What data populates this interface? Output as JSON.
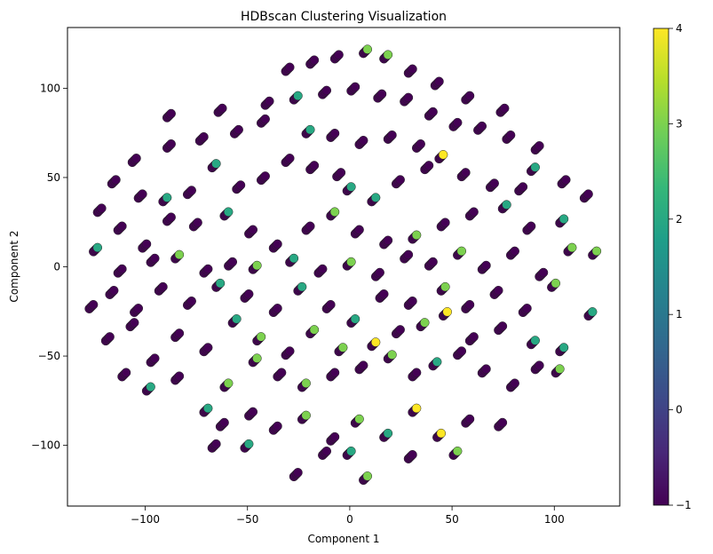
{
  "chart_data": {
    "type": "scatter",
    "title": "HDBscan Clustering Visualization",
    "xlabel": "Component 1",
    "ylabel": "Component 2",
    "xlim": [
      -138,
      132
    ],
    "ylim": [
      -134,
      134
    ],
    "xticks": [
      -100,
      -50,
      0,
      50,
      100
    ],
    "xtick_labels": [
      "−100",
      "−50",
      "0",
      "50",
      "100"
    ],
    "yticks": [
      -100,
      -50,
      0,
      50,
      100
    ],
    "ytick_labels": [
      "−100",
      "−50",
      "0",
      "50",
      "100"
    ],
    "grid": false,
    "colormap": "viridis",
    "colorbar": {
      "min": -1,
      "max": 4,
      "ticks": [
        -1,
        0,
        1,
        2,
        3,
        4
      ],
      "tick_labels": [
        "−1",
        "0",
        "1",
        "2",
        "3",
        "4"
      ]
    },
    "colormap_stops": [
      "#440154",
      "#482878",
      "#3e4989",
      "#31688e",
      "#26828e",
      "#1f9e89",
      "#35b779",
      "#6ece58",
      "#b5de2b",
      "#fde725"
    ],
    "point_color_default": "#440154",
    "points": [
      {
        "x": -88,
        "y": 85,
        "label": -1
      },
      {
        "x": -63,
        "y": 88,
        "label": -1
      },
      {
        "x": -40,
        "y": 92,
        "label": -1
      },
      {
        "x": -30,
        "y": 111,
        "label": -1
      },
      {
        "x": -18,
        "y": 115,
        "label": -1
      },
      {
        "x": -6,
        "y": 118,
        "label": -1
      },
      {
        "x": 8,
        "y": 121,
        "label": 3
      },
      {
        "x": 18,
        "y": 118,
        "label": 3
      },
      {
        "x": 30,
        "y": 110,
        "label": -1
      },
      {
        "x": 43,
        "y": 103,
        "label": -1
      },
      {
        "x": 58,
        "y": 95,
        "label": -1
      },
      {
        "x": 75,
        "y": 88,
        "label": -1
      },
      {
        "x": -105,
        "y": 60,
        "label": -1
      },
      {
        "x": -88,
        "y": 68,
        "label": -1
      },
      {
        "x": -72,
        "y": 72,
        "label": -1
      },
      {
        "x": -55,
        "y": 76,
        "label": -1
      },
      {
        "x": -42,
        "y": 82,
        "label": -1
      },
      {
        "x": -26,
        "y": 95,
        "label": 2
      },
      {
        "x": -12,
        "y": 98,
        "label": -1
      },
      {
        "x": 2,
        "y": 100,
        "label": -1
      },
      {
        "x": 15,
        "y": 96,
        "label": -1
      },
      {
        "x": 28,
        "y": 94,
        "label": -1
      },
      {
        "x": 40,
        "y": 86,
        "label": -1
      },
      {
        "x": 52,
        "y": 80,
        "label": -1
      },
      {
        "x": 64,
        "y": 78,
        "label": -1
      },
      {
        "x": 78,
        "y": 73,
        "label": -1
      },
      {
        "x": 92,
        "y": 67,
        "label": -1
      },
      {
        "x": -20,
        "y": 76,
        "label": 2
      },
      {
        "x": -8,
        "y": 74,
        "label": -1
      },
      {
        "x": 6,
        "y": 70,
        "label": -1
      },
      {
        "x": 20,
        "y": 73,
        "label": -1
      },
      {
        "x": 34,
        "y": 68,
        "label": -1
      },
      {
        "x": 45,
        "y": 62,
        "label": 4
      },
      {
        "x": -115,
        "y": 48,
        "label": -1
      },
      {
        "x": -102,
        "y": 40,
        "label": -1
      },
      {
        "x": -90,
        "y": 38,
        "label": 2
      },
      {
        "x": -78,
        "y": 42,
        "label": -1
      },
      {
        "x": -66,
        "y": 57,
        "label": 2
      },
      {
        "x": -54,
        "y": 45,
        "label": -1
      },
      {
        "x": -42,
        "y": 50,
        "label": -1
      },
      {
        "x": -30,
        "y": 60,
        "label": -1
      },
      {
        "x": -18,
        "y": 56,
        "label": -1
      },
      {
        "x": -5,
        "y": 52,
        "label": -1
      },
      {
        "x": 0,
        "y": 44,
        "label": 2
      },
      {
        "x": 12,
        "y": 38,
        "label": 2
      },
      {
        "x": 24,
        "y": 48,
        "label": -1
      },
      {
        "x": 38,
        "y": 56,
        "label": -1
      },
      {
        "x": 56,
        "y": 52,
        "label": -1
      },
      {
        "x": 70,
        "y": 46,
        "label": -1
      },
      {
        "x": 84,
        "y": 44,
        "label": -1
      },
      {
        "x": 90,
        "y": 55,
        "label": 2
      },
      {
        "x": 105,
        "y": 48,
        "label": -1
      },
      {
        "x": 116,
        "y": 40,
        "label": -1
      },
      {
        "x": -122,
        "y": 32,
        "label": -1
      },
      {
        "x": -112,
        "y": 22,
        "label": -1
      },
      {
        "x": -100,
        "y": 12,
        "label": -1
      },
      {
        "x": -88,
        "y": 27,
        "label": -1
      },
      {
        "x": -75,
        "y": 24,
        "label": -1
      },
      {
        "x": -60,
        "y": 30,
        "label": 2
      },
      {
        "x": -48,
        "y": 20,
        "label": -1
      },
      {
        "x": -36,
        "y": 12,
        "label": -1
      },
      {
        "x": -20,
        "y": 22,
        "label": -1
      },
      {
        "x": -8,
        "y": 30,
        "label": 3
      },
      {
        "x": 4,
        "y": 20,
        "label": -1
      },
      {
        "x": 18,
        "y": 14,
        "label": -1
      },
      {
        "x": 32,
        "y": 17,
        "label": 3
      },
      {
        "x": 46,
        "y": 24,
        "label": -1
      },
      {
        "x": 60,
        "y": 30,
        "label": -1
      },
      {
        "x": 76,
        "y": 34,
        "label": 2
      },
      {
        "x": 88,
        "y": 22,
        "label": -1
      },
      {
        "x": 104,
        "y": 26,
        "label": 2
      },
      {
        "x": -124,
        "y": 10,
        "label": 2
      },
      {
        "x": -112,
        "y": -2,
        "label": -1
      },
      {
        "x": -96,
        "y": 4,
        "label": -1
      },
      {
        "x": -84,
        "y": 6,
        "label": 3
      },
      {
        "x": -70,
        "y": -2,
        "label": -1
      },
      {
        "x": -58,
        "y": 2,
        "label": -1
      },
      {
        "x": -46,
        "y": 0,
        "label": 3
      },
      {
        "x": -28,
        "y": 4,
        "label": 2
      },
      {
        "x": -14,
        "y": -2,
        "label": -1
      },
      {
        "x": 0,
        "y": 2,
        "label": 3
      },
      {
        "x": 14,
        "y": -4,
        "label": -1
      },
      {
        "x": 28,
        "y": 6,
        "label": -1
      },
      {
        "x": 40,
        "y": 2,
        "label": -1
      },
      {
        "x": 54,
        "y": 8,
        "label": 3
      },
      {
        "x": 66,
        "y": 0,
        "label": -1
      },
      {
        "x": 80,
        "y": 8,
        "label": -1
      },
      {
        "x": 94,
        "y": -4,
        "label": -1
      },
      {
        "x": 108,
        "y": 10,
        "label": 3
      },
      {
        "x": 120,
        "y": 8,
        "label": 3
      },
      {
        "x": -126,
        "y": -22,
        "label": -1
      },
      {
        "x": -116,
        "y": -14,
        "label": -1
      },
      {
        "x": -104,
        "y": -24,
        "label": -1
      },
      {
        "x": -92,
        "y": -12,
        "label": -1
      },
      {
        "x": -78,
        "y": -20,
        "label": -1
      },
      {
        "x": -64,
        "y": -10,
        "label": 2
      },
      {
        "x": -50,
        "y": -16,
        "label": -1
      },
      {
        "x": -36,
        "y": -24,
        "label": -1
      },
      {
        "x": -24,
        "y": -12,
        "label": 2
      },
      {
        "x": -10,
        "y": -22,
        "label": -1
      },
      {
        "x": 2,
        "y": -30,
        "label": 2
      },
      {
        "x": 16,
        "y": -16,
        "label": -1
      },
      {
        "x": 30,
        "y": -20,
        "label": -1
      },
      {
        "x": 46,
        "y": -12,
        "label": 3
      },
      {
        "x": 58,
        "y": -22,
        "label": -1
      },
      {
        "x": 72,
        "y": -14,
        "label": -1
      },
      {
        "x": 86,
        "y": -24,
        "label": -1
      },
      {
        "x": 100,
        "y": -10,
        "label": 3
      },
      {
        "x": 118,
        "y": -26,
        "label": 2
      },
      {
        "x": -118,
        "y": -40,
        "label": -1
      },
      {
        "x": -106,
        "y": -32,
        "label": -1
      },
      {
        "x": -96,
        "y": -52,
        "label": -1
      },
      {
        "x": -84,
        "y": -38,
        "label": -1
      },
      {
        "x": -70,
        "y": -46,
        "label": -1
      },
      {
        "x": -56,
        "y": -30,
        "label": 2
      },
      {
        "x": -44,
        "y": -40,
        "label": 3
      },
      {
        "x": -30,
        "y": -48,
        "label": -1
      },
      {
        "x": -18,
        "y": -36,
        "label": 3
      },
      {
        "x": -4,
        "y": -46,
        "label": 3
      },
      {
        "x": 12,
        "y": -43,
        "label": 4
      },
      {
        "x": 24,
        "y": -36,
        "label": -1
      },
      {
        "x": 36,
        "y": -32,
        "label": 3
      },
      {
        "x": 47,
        "y": -26,
        "label": 4
      },
      {
        "x": 60,
        "y": -40,
        "label": -1
      },
      {
        "x": 74,
        "y": -34,
        "label": -1
      },
      {
        "x": 90,
        "y": -42,
        "label": 2
      },
      {
        "x": 104,
        "y": -46,
        "label": 2
      },
      {
        "x": -110,
        "y": -60,
        "label": -1
      },
      {
        "x": -98,
        "y": -68,
        "label": 2
      },
      {
        "x": -84,
        "y": -62,
        "label": -1
      },
      {
        "x": -70,
        "y": -80,
        "label": 2
      },
      {
        "x": -60,
        "y": -66,
        "label": 3
      },
      {
        "x": -46,
        "y": -52,
        "label": 3
      },
      {
        "x": -34,
        "y": -60,
        "label": -1
      },
      {
        "x": -22,
        "y": -66,
        "label": 3
      },
      {
        "x": -8,
        "y": -60,
        "label": -1
      },
      {
        "x": 6,
        "y": -56,
        "label": -1
      },
      {
        "x": 20,
        "y": -50,
        "label": 3
      },
      {
        "x": 32,
        "y": -60,
        "label": -1
      },
      {
        "x": 42,
        "y": -54,
        "label": 2
      },
      {
        "x": 54,
        "y": -48,
        "label": -1
      },
      {
        "x": 66,
        "y": -58,
        "label": -1
      },
      {
        "x": 80,
        "y": -66,
        "label": -1
      },
      {
        "x": 92,
        "y": -56,
        "label": -1
      },
      {
        "x": 102,
        "y": -58,
        "label": 3
      },
      {
        "x": -62,
        "y": -88,
        "label": -1
      },
      {
        "x": -48,
        "y": -82,
        "label": -1
      },
      {
        "x": -36,
        "y": -90,
        "label": -1
      },
      {
        "x": -22,
        "y": -84,
        "label": 3
      },
      {
        "x": -8,
        "y": -96,
        "label": -1
      },
      {
        "x": 4,
        "y": -86,
        "label": 3
      },
      {
        "x": 18,
        "y": -94,
        "label": 2
      },
      {
        "x": 32,
        "y": -80,
        "label": 4
      },
      {
        "x": 44,
        "y": -94,
        "label": 4
      },
      {
        "x": 58,
        "y": -86,
        "label": -1
      },
      {
        "x": 74,
        "y": -88,
        "label": -1
      },
      {
        "x": -66,
        "y": -100,
        "label": -1
      },
      {
        "x": -50,
        "y": -100,
        "label": 2
      },
      {
        "x": -26,
        "y": -116,
        "label": -1
      },
      {
        "x": -12,
        "y": -104,
        "label": -1
      },
      {
        "x": 0,
        "y": -104,
        "label": 2
      },
      {
        "x": 8,
        "y": -118,
        "label": 3
      },
      {
        "x": 30,
        "y": -106,
        "label": -1
      },
      {
        "x": 52,
        "y": -104,
        "label": 3
      }
    ]
  }
}
